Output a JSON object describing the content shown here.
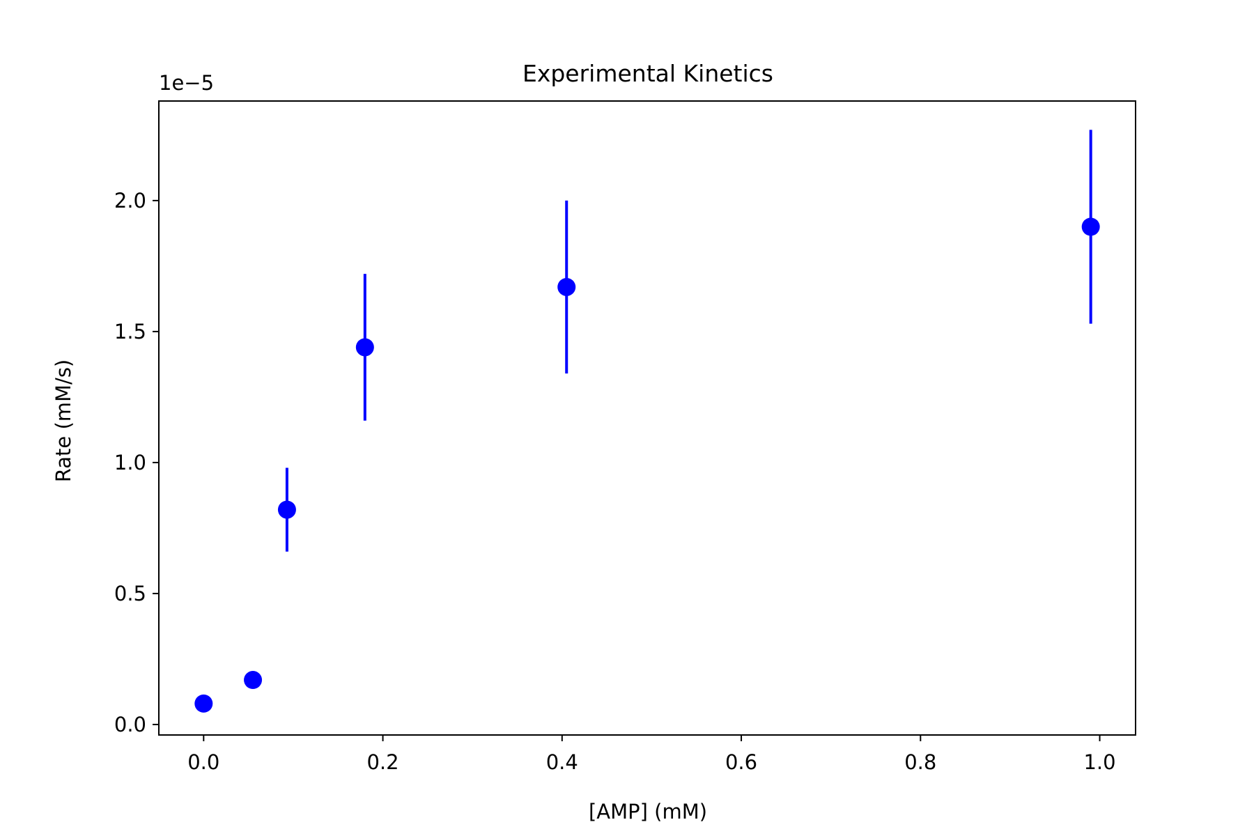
{
  "chart_data": {
    "type": "scatter",
    "title": "Experimental Kinetics",
    "xlabel": "[AMP] (mM)",
    "ylabel": "Rate (mM/s)",
    "y_offset_label": "1e−5",
    "y_scale": 1e-05,
    "xlim": [
      -0.05,
      1.04
    ],
    "ylim": [
      -0.04,
      2.38
    ],
    "x_ticks": [
      0.0,
      0.2,
      0.4,
      0.6,
      0.8,
      1.0
    ],
    "x_tick_labels": [
      "0.0",
      "0.2",
      "0.4",
      "0.6",
      "0.8",
      "1.0"
    ],
    "y_ticks": [
      0.0,
      0.5,
      1.0,
      1.5,
      2.0
    ],
    "y_tick_labels": [
      "0.0",
      "0.5",
      "1.0",
      "1.5",
      "2.0"
    ],
    "grid": false,
    "legend": null,
    "marker_color": "#0000ff",
    "axis_color": "#000000",
    "points": [
      {
        "x": 0.0,
        "y": 0.08,
        "err": 0.0
      },
      {
        "x": 0.055,
        "y": 0.17,
        "err": 0.0
      },
      {
        "x": 0.093,
        "y": 0.82,
        "err": 0.16
      },
      {
        "x": 0.18,
        "y": 1.44,
        "err": 0.28
      },
      {
        "x": 0.405,
        "y": 1.67,
        "err": 0.33
      },
      {
        "x": 0.99,
        "y": 1.9,
        "err": 0.37
      }
    ]
  }
}
